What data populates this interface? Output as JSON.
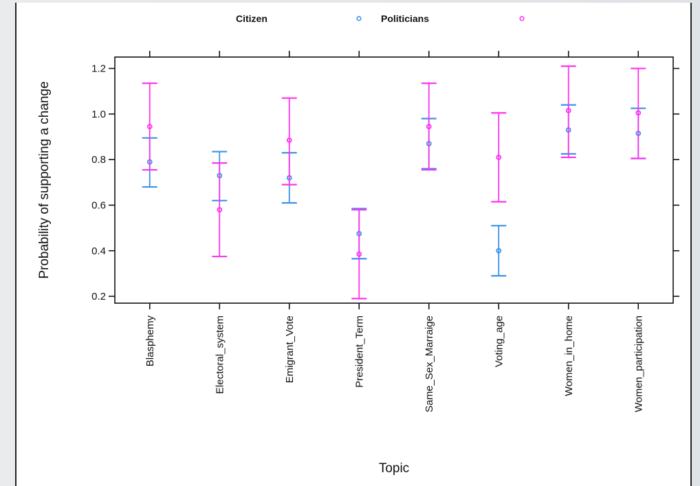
{
  "colors": {
    "citizen": "#3b93e8",
    "politicians": "#ff33ee",
    "axis": "#111111",
    "background": "#ffffff"
  },
  "legend": {
    "entries": [
      {
        "label": "Citizen",
        "marker": "circle",
        "color_key": "citizen"
      },
      {
        "label": "Politicians",
        "marker": "circle",
        "color_key": "politicians"
      }
    ],
    "placement": "top"
  },
  "chart_data": {
    "type": "scatter",
    "title": "",
    "xlabel": "Topic",
    "ylabel": "Probability of supporting a change",
    "ylim": [
      0.17,
      1.25
    ],
    "yticks": [
      0.2,
      0.4,
      0.6,
      0.8,
      1.0,
      1.2
    ],
    "ytick_labels": [
      "0.2",
      "0.4",
      "0.6",
      "0.8",
      "1.0",
      "1.2"
    ],
    "grid": false,
    "error_bars": true,
    "categories": [
      "Blasphemy",
      "Electoral_system",
      "Emigrant_Vote",
      "President_Term",
      "Same_Sex_Marraige",
      "Voting_age",
      "Women_in_home",
      "Women_participation"
    ],
    "series": [
      {
        "name": "Citizen",
        "values": [
          0.79,
          0.73,
          0.72,
          0.475,
          0.87,
          0.4,
          0.93,
          0.915
        ],
        "lower": [
          0.68,
          0.62,
          0.61,
          0.365,
          0.76,
          0.29,
          0.825,
          0.805
        ],
        "upper": [
          0.895,
          0.835,
          0.83,
          0.585,
          0.98,
          0.51,
          1.04,
          1.025
        ]
      },
      {
        "name": "Politicians",
        "values": [
          0.945,
          0.58,
          0.885,
          0.385,
          0.945,
          0.81,
          1.015,
          1.005
        ],
        "lower": [
          0.755,
          0.375,
          0.69,
          0.19,
          0.755,
          0.615,
          0.81,
          0.805
        ],
        "upper": [
          1.135,
          0.785,
          1.07,
          0.58,
          1.135,
          1.005,
          1.21,
          1.2
        ]
      }
    ]
  }
}
